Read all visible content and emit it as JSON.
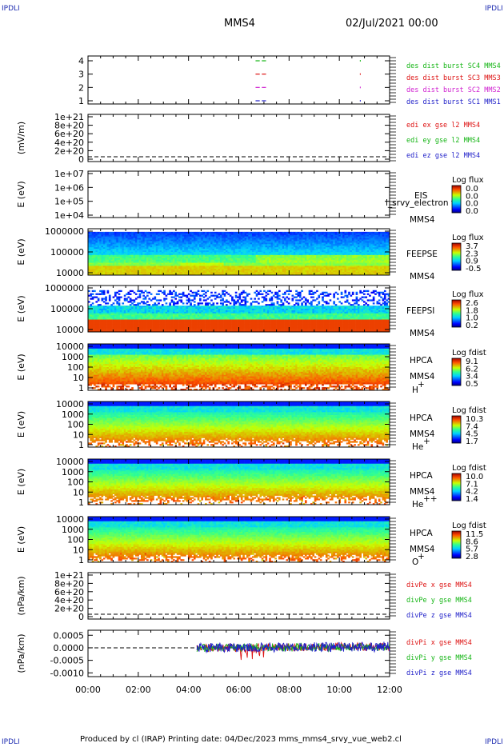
{
  "header": {
    "corner_tag": "IPDLI",
    "spacecraft": "MMS4",
    "date_time": "02/Jul/2021 00:00"
  },
  "footer": {
    "text": "Produced by cl (IRAP)   Printing date: 04/Dec/2023   mms_mms4_srvy_vue_web2.cl"
  },
  "colors": {
    "mms1": "#1e1ec8",
    "mms2": "#d020d0",
    "mms3": "#dd1111",
    "mms4": "#15b515",
    "x": "#dd1111",
    "y": "#15b515",
    "z": "#1e1ec8"
  },
  "chart_data": [
    {
      "type": "line",
      "panel": "availability",
      "xlim": [
        "00:00",
        "12:00"
      ],
      "ylim": [
        0.5,
        4.5
      ],
      "yticks": [
        "4",
        "3",
        "2",
        "1"
      ],
      "series": [
        {
          "name": "des dist burst SC1 MMS1",
          "level": 1,
          "color": "#1e1ec8",
          "segments": [
            [
              "06:40",
              "06:50"
            ],
            [
              "06:55",
              "07:05"
            ]
          ]
        },
        {
          "name": "des dist burst SC2 MMS2",
          "level": 2,
          "color": "#d020d0",
          "segments": [
            [
              "06:40",
              "06:50"
            ],
            [
              "06:55",
              "07:05"
            ]
          ]
        },
        {
          "name": "des dist burst SC3 MMS3",
          "level": 3,
          "color": "#dd1111",
          "segments": [
            [
              "06:40",
              "06:50"
            ],
            [
              "06:55",
              "07:05"
            ]
          ]
        },
        {
          "name": "des dist burst SC4 MMS4",
          "level": 4,
          "color": "#15b515",
          "segments": [
            [
              "06:40",
              "06:50"
            ],
            [
              "06:55",
              "07:05"
            ]
          ]
        }
      ],
      "markers_at": "10:50"
    },
    {
      "type": "line",
      "panel": "edi",
      "ylabel": "(mV/m)",
      "yticks": [
        "1e+21",
        "8e+20",
        "6e+20",
        "4e+20",
        "2e+20",
        "0"
      ],
      "ylim": [
        0,
        1e+21
      ],
      "series": [
        {
          "name": "edi ex gse l2 MMS4",
          "color": "#dd1111"
        },
        {
          "name": "edi ey gse l2 MMS4",
          "color": "#15b515"
        },
        {
          "name": "edi ez gse l2 MMS4",
          "color": "#1e1ec8"
        }
      ],
      "zero_line": true
    },
    {
      "type": "heatmap",
      "panel": "eis",
      "ylabel": "E (eV)",
      "yticks": [
        "1e+07",
        "1e+06",
        "1e+05",
        "1e+04"
      ],
      "labels": [
        "EIS",
        "MMS4"
      ],
      "overlay_text": "l_srvy_electron to",
      "colorbar": {
        "title": "Log flux",
        "ticks": [
          "0.0",
          "0.0",
          "0.0",
          "0.0"
        ]
      }
    },
    {
      "type": "heatmap",
      "panel": "feeps_e",
      "ylabel": "E (eV)",
      "yticks": [
        "1000000",
        "100000",
        "10000"
      ],
      "labels": [
        "FEEPSE",
        "MMS4"
      ],
      "colorbar": {
        "title": "Log flux",
        "ticks": [
          "3.7",
          "2.3",
          "0.9",
          "-0.5"
        ]
      }
    },
    {
      "type": "heatmap",
      "panel": "feeps_i",
      "ylabel": "E (eV)",
      "yticks": [
        "1000000",
        "100000",
        "10000"
      ],
      "labels": [
        "FEEPSI",
        "MMS4"
      ],
      "colorbar": {
        "title": "Log flux",
        "ticks": [
          "2.6",
          "1.8",
          "1.0",
          "0.2"
        ]
      }
    },
    {
      "type": "heatmap",
      "panel": "hpca_h",
      "ylabel": "E (eV)",
      "yticks": [
        "10000",
        "1000",
        "100",
        "10",
        "1"
      ],
      "labels": [
        "HPCA",
        "MMS4",
        "H",
        "+"
      ],
      "colorbar": {
        "title": "Log fdist",
        "ticks": [
          "9.1",
          "6.2",
          "3.4",
          "0.5"
        ]
      }
    },
    {
      "type": "heatmap",
      "panel": "hpca_he",
      "ylabel": "E (eV)",
      "yticks": [
        "10000",
        "1000",
        "100",
        "10",
        "1"
      ],
      "labels": [
        "HPCA",
        "MMS4",
        "He",
        "+"
      ],
      "colorbar": {
        "title": "Log fdist",
        "ticks": [
          "10.3",
          "7.4",
          "4.5",
          "1.7"
        ]
      }
    },
    {
      "type": "heatmap",
      "panel": "hpca_hepp",
      "ylabel": "E (eV)",
      "yticks": [
        "10000",
        "1000",
        "100",
        "10",
        "1"
      ],
      "labels": [
        "HPCA",
        "MMS4",
        "He",
        "++"
      ],
      "colorbar": {
        "title": "Log fdist",
        "ticks": [
          "10.0",
          "7.1",
          "4.2",
          "1.4"
        ]
      }
    },
    {
      "type": "heatmap",
      "panel": "hpca_o",
      "ylabel": "E (eV)",
      "yticks": [
        "10000",
        "1000",
        "100",
        "10",
        "1"
      ],
      "labels": [
        "HPCA",
        "MMS4",
        "O",
        "+"
      ],
      "colorbar": {
        "title": "Log fdist",
        "ticks": [
          "11.5",
          "8.6",
          "5.7",
          "2.8"
        ]
      }
    },
    {
      "type": "line",
      "panel": "divpe",
      "ylabel": "(nPa/km)",
      "yticks": [
        "1e+21",
        "8e+20",
        "6e+20",
        "4e+20",
        "2e+20",
        "0"
      ],
      "ylim": [
        0,
        1e+21
      ],
      "series": [
        {
          "name": "divPe x gse MMS4",
          "color": "#dd1111"
        },
        {
          "name": "divPe y gse MMS4",
          "color": "#15b515"
        },
        {
          "name": "divPe z gse MMS4",
          "color": "#1e1ec8"
        }
      ],
      "zero_line": true
    },
    {
      "type": "line",
      "panel": "divpi",
      "ylabel": "(nPa/km)",
      "yticks": [
        "0.0005",
        "0.0000",
        "-0.0005",
        "-0.0010"
      ],
      "ylim": [
        -0.00115,
        0.0007
      ],
      "data_start": "04:20",
      "series": [
        {
          "name": "divPi x gse MMS4",
          "color": "#dd1111"
        },
        {
          "name": "divPi y gse MMS4",
          "color": "#15b515"
        },
        {
          "name": "divPi z gse MMS4",
          "color": "#1e1ec8"
        }
      ],
      "zero_line": true
    }
  ],
  "xaxis": {
    "ticks": [
      "00:00",
      "02:00",
      "04:00",
      "06:00",
      "08:00",
      "10:00",
      "12:00"
    ]
  }
}
